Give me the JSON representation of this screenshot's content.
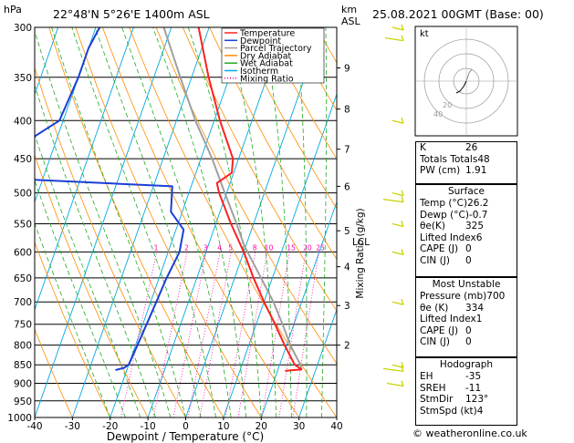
{
  "header": {
    "hpa_label": "hPa",
    "location": "22°48'N  5°26'E  1400m  ASL",
    "km_label": "km",
    "asl_label": "ASL",
    "datetime": "25.08.2021  00GMT  (Base: 00)"
  },
  "chart_data": {
    "type": "skew-t log-p",
    "pressure_levels": [
      300,
      350,
      400,
      450,
      500,
      550,
      600,
      650,
      700,
      750,
      800,
      850,
      900,
      950,
      1000
    ],
    "x_ticks": [
      -40,
      -30,
      -20,
      -10,
      0,
      10,
      20,
      30,
      40
    ],
    "xlabel": "Dewpoint / Temperature (°C)",
    "mixing_ratio_label": "Mixing Ratio (g/kg)",
    "mixing_ratio_values": [
      "1",
      "2",
      "3",
      "4",
      "5",
      "8",
      "10",
      "15",
      "20",
      "25"
    ],
    "km_ticks": [
      {
        "label": "9",
        "p": 340
      },
      {
        "label": "8",
        "p": 386
      },
      {
        "label": "7",
        "p": 437
      },
      {
        "label": "6",
        "p": 490
      },
      {
        "label": "5",
        "p": 562
      },
      {
        "label": "4",
        "p": 628
      },
      {
        "label": "3",
        "p": 708
      },
      {
        "label": "2",
        "p": 800
      }
    ],
    "lcl_label": "LCL",
    "lcl_p": 588,
    "legend": [
      {
        "name": "Temperature",
        "color": "#ff2020"
      },
      {
        "name": "Dewpoint",
        "color": "#1a3fd6"
      },
      {
        "name": "Parcel Trajectory",
        "color": "#a0a0a0"
      },
      {
        "name": "Dry Adiabat",
        "color": "#ff8c00"
      },
      {
        "name": "Wet Adiabat",
        "color": "#22aa22"
      },
      {
        "name": "Isotherm",
        "color": "#00a8e0"
      },
      {
        "name": "Mixing Ratio",
        "color": "#ff00aa"
      }
    ],
    "temperature": [
      {
        "p": 300,
        "t": -32.8
      },
      {
        "p": 350,
        "t": -25.5
      },
      {
        "p": 400,
        "t": -18.5
      },
      {
        "p": 450,
        "t": -11.5
      },
      {
        "p": 470,
        "t": -10.5
      },
      {
        "p": 485,
        "t": -13.5
      },
      {
        "p": 500,
        "t": -12
      },
      {
        "p": 550,
        "t": -6
      },
      {
        "p": 600,
        "t": 0
      },
      {
        "p": 650,
        "t": 5
      },
      {
        "p": 700,
        "t": 10
      },
      {
        "p": 750,
        "t": 15
      },
      {
        "p": 800,
        "t": 19.5
      },
      {
        "p": 850,
        "t": 24
      },
      {
        "p": 862,
        "t": 26.2
      },
      {
        "p": 866,
        "t": 22
      }
    ],
    "dewpoint": [
      {
        "p": 300,
        "t": -59
      },
      {
        "p": 320,
        "t": -60
      },
      {
        "p": 350,
        "t": -60
      },
      {
        "p": 400,
        "t": -61
      },
      {
        "p": 440,
        "t": -71
      },
      {
        "p": 480,
        "t": -63
      },
      {
        "p": 490,
        "t": -25
      },
      {
        "p": 530,
        "t": -23
      },
      {
        "p": 560,
        "t": -18
      },
      {
        "p": 600,
        "t": -17
      },
      {
        "p": 650,
        "t": -18
      },
      {
        "p": 700,
        "t": -18.5
      },
      {
        "p": 750,
        "t": -19
      },
      {
        "p": 800,
        "t": -19.5
      },
      {
        "p": 850,
        "t": -20
      },
      {
        "p": 858,
        "t": -21
      },
      {
        "p": 864,
        "t": -23
      }
    ],
    "parcel": [
      {
        "p": 300,
        "t": -42
      },
      {
        "p": 350,
        "t": -33
      },
      {
        "p": 400,
        "t": -25
      },
      {
        "p": 450,
        "t": -17
      },
      {
        "p": 500,
        "t": -10.5
      },
      {
        "p": 550,
        "t": -4.5
      },
      {
        "p": 588,
        "t": -0.5
      },
      {
        "p": 650,
        "t": 7
      },
      {
        "p": 700,
        "t": 12.5
      },
      {
        "p": 750,
        "t": 17
      },
      {
        "p": 800,
        "t": 21
      },
      {
        "p": 850,
        "t": 25.5
      },
      {
        "p": 862,
        "t": 26.2
      }
    ],
    "hodograph": {
      "label": "kt",
      "rings": [
        "20",
        "40"
      ]
    }
  },
  "indices": {
    "rows": [
      {
        "label": "K",
        "value": "26"
      },
      {
        "label": "Totals Totals",
        "value": "48"
      },
      {
        "label": "PW (cm)",
        "value": "1.91"
      }
    ]
  },
  "surface": {
    "title": "Surface",
    "rows": [
      {
        "label": "Temp (°C)",
        "value": "26.2"
      },
      {
        "label": "Dewp (°C)",
        "value": "-0.7"
      },
      {
        "label": "θe(K)",
        "value": "325"
      },
      {
        "label": "Lifted Index",
        "value": "6"
      },
      {
        "label": "CAPE (J)",
        "value": "0"
      },
      {
        "label": "CIN (J)",
        "value": "0"
      }
    ]
  },
  "most_unstable": {
    "title": "Most Unstable",
    "rows": [
      {
        "label": "Pressure (mb)",
        "value": "700"
      },
      {
        "label": "θe (K)",
        "value": "334"
      },
      {
        "label": "Lifted Index",
        "value": "1"
      },
      {
        "label": "CAPE (J)",
        "value": "0"
      },
      {
        "label": "CIN (J)",
        "value": "0"
      }
    ]
  },
  "hodograph_box": {
    "title": "Hodograph",
    "rows": [
      {
        "label": "EH",
        "value": "-35"
      },
      {
        "label": "SREH",
        "value": "-11"
      },
      {
        "label": "StmDir",
        "value": "123°"
      },
      {
        "label": "StmSpd (kt)",
        "value": "4"
      }
    ]
  },
  "footer": {
    "copyright": "© weatheronline.co.uk"
  },
  "colors": {
    "temperature": "#ff2020",
    "dewpoint": "#1a3fd6",
    "parcel": "#a0a0a0",
    "dry_adiabat": "#ff8c00",
    "wet_adiabat": "#22aa22",
    "isotherm": "#00a8e0",
    "mixing_ratio": "#ff00aa",
    "wind_barb": "#c8d400"
  }
}
